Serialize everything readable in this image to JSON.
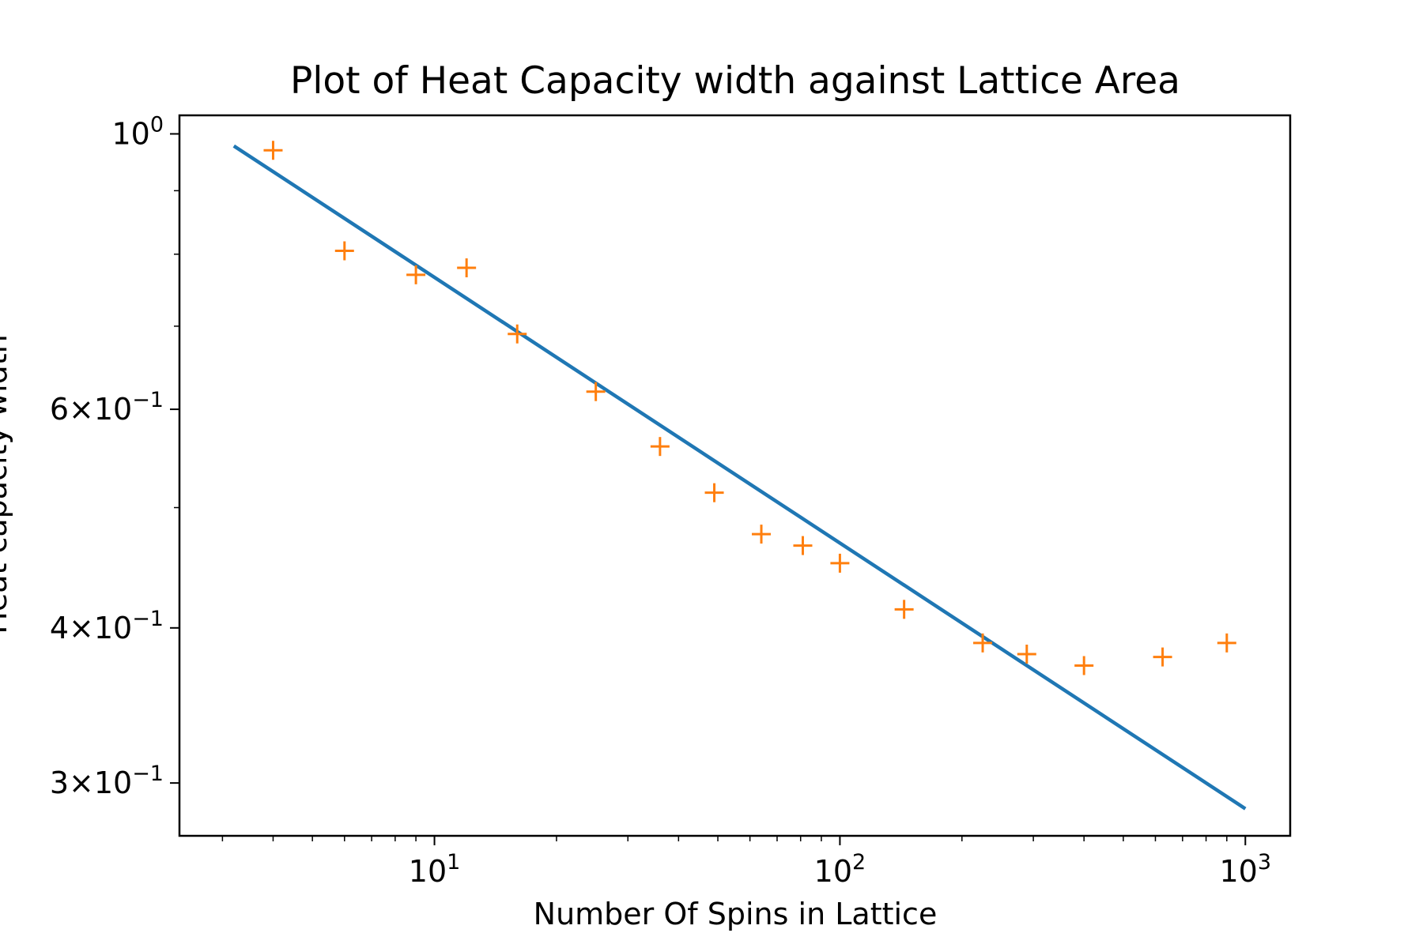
{
  "chart_data": {
    "type": "scatter",
    "title": "Plot of Heat Capacity width against Lattice Area",
    "xlabel": "Number Of Spins in Lattice",
    "ylabel": "Heat capacity width",
    "xscale": "log",
    "yscale": "log",
    "xlim": [
      2.35,
      1290
    ],
    "ylim": [
      0.272,
      1.035
    ],
    "x_ticks": [
      {
        "value": 10,
        "base": "10",
        "exp": "1"
      },
      {
        "value": 100,
        "base": "10",
        "exp": "2"
      },
      {
        "value": 1000,
        "base": "10",
        "exp": "3"
      }
    ],
    "y_ticks": [
      {
        "value": 1.0,
        "mant": "",
        "base": "10",
        "exp": "0"
      },
      {
        "value": 0.6,
        "mant": "6×",
        "base": "10",
        "exp": "−1"
      },
      {
        "value": 0.4,
        "mant": "4×",
        "base": "10",
        "exp": "−1"
      },
      {
        "value": 0.3,
        "mant": "3×",
        "base": "10",
        "exp": "−1"
      }
    ],
    "grid": false,
    "legend": "none",
    "series": [
      {
        "kind": "line",
        "color": "#1f77b4",
        "x": [
          3.2,
          1000
        ],
        "y": [
          0.978,
          0.286
        ]
      },
      {
        "kind": "markers",
        "marker": "plus",
        "color": "#ff7f0e",
        "x": [
          4,
          6,
          9,
          12,
          16,
          25,
          36,
          49,
          64,
          81,
          100,
          144,
          225,
          289,
          400,
          625,
          900
        ],
        "y": [
          0.97,
          0.805,
          0.77,
          0.78,
          0.69,
          0.62,
          0.56,
          0.514,
          0.476,
          0.466,
          0.451,
          0.414,
          0.389,
          0.381,
          0.373,
          0.379,
          0.389
        ]
      }
    ]
  }
}
